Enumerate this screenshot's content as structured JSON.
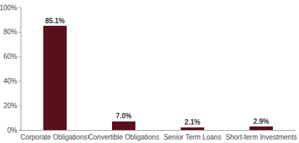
{
  "chart_data": {
    "type": "bar",
    "categories": [
      "Corporate Obligations¹",
      "Convertible Obligations",
      "Senior Term Loans",
      "Short-term Investments"
    ],
    "values": [
      85.1,
      7.0,
      2.1,
      2.9
    ],
    "value_labels": [
      "85.1%",
      "7.0%",
      "2.1%",
      "2.9%"
    ],
    "color": "#5a0f1c",
    "ylim": [
      0,
      100
    ],
    "yticks": [
      {
        "value": 0,
        "label": "0%"
      },
      {
        "value": 20,
        "label": "20%"
      },
      {
        "value": 40,
        "label": "40%"
      },
      {
        "value": 60,
        "label": "60%"
      },
      {
        "value": 80,
        "label": "80%"
      },
      {
        "value": 100,
        "label": "100%"
      }
    ],
    "grid": false,
    "data_labels": true
  }
}
